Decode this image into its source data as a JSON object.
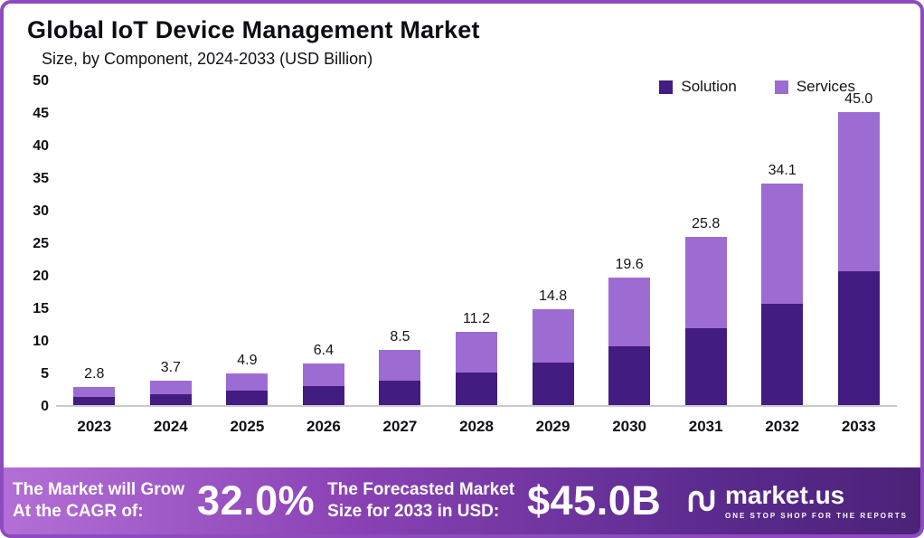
{
  "header": {
    "title": "Global IoT Device Management Market",
    "subtitle": "Size, by Component, 2024-2033 (USD Billion)"
  },
  "legend": [
    {
      "label": "Solution",
      "color": "#421c80"
    },
    {
      "label": "Services",
      "color": "#9c6cd3"
    }
  ],
  "chart_data": {
    "type": "bar",
    "stacked": true,
    "title": "Global IoT Device Management Market",
    "subtitle": "Size, by Component, 2024-2033 (USD Billion)",
    "categories": [
      "2023",
      "2024",
      "2025",
      "2026",
      "2027",
      "2028",
      "2029",
      "2030",
      "2031",
      "2032",
      "2033"
    ],
    "series": [
      {
        "name": "Solution",
        "color": "#421c80",
        "values": [
          1.3,
          1.7,
          2.2,
          2.9,
          3.8,
          5.0,
          6.6,
          9.0,
          11.8,
          15.5,
          20.5
        ]
      },
      {
        "name": "Services",
        "color": "#9c6cd3",
        "values": [
          1.5,
          2.0,
          2.7,
          3.5,
          4.7,
          6.2,
          8.2,
          10.6,
          14.0,
          18.6,
          24.5
        ]
      }
    ],
    "totals": [
      2.8,
      3.7,
      4.9,
      6.4,
      8.5,
      11.2,
      14.8,
      19.6,
      25.8,
      34.1,
      45.0
    ],
    "ylim": [
      0,
      50
    ],
    "yticks": [
      0,
      5,
      10,
      15,
      20,
      25,
      30,
      35,
      40,
      45,
      50
    ],
    "grid": false,
    "legend_position": "top-right"
  },
  "footer": {
    "cagr_label_line1": "The Market will Grow",
    "cagr_label_line2": "At the CAGR of:",
    "cagr_value": "32.0%",
    "forecast_label_line1": "The Forecasted Market",
    "forecast_label_line2": "Size for 2033 in USD:",
    "forecast_value": "$45.0B",
    "brand": "market.us",
    "brand_tagline": "ONE STOP SHOP FOR THE REPORTS"
  },
  "colors": {
    "solution": "#421c80",
    "services": "#9c6cd3",
    "frame_border": "#8d4bc0",
    "banner_gradient_start": "#b36fd6",
    "banner_gradient_end": "#4c2278"
  }
}
